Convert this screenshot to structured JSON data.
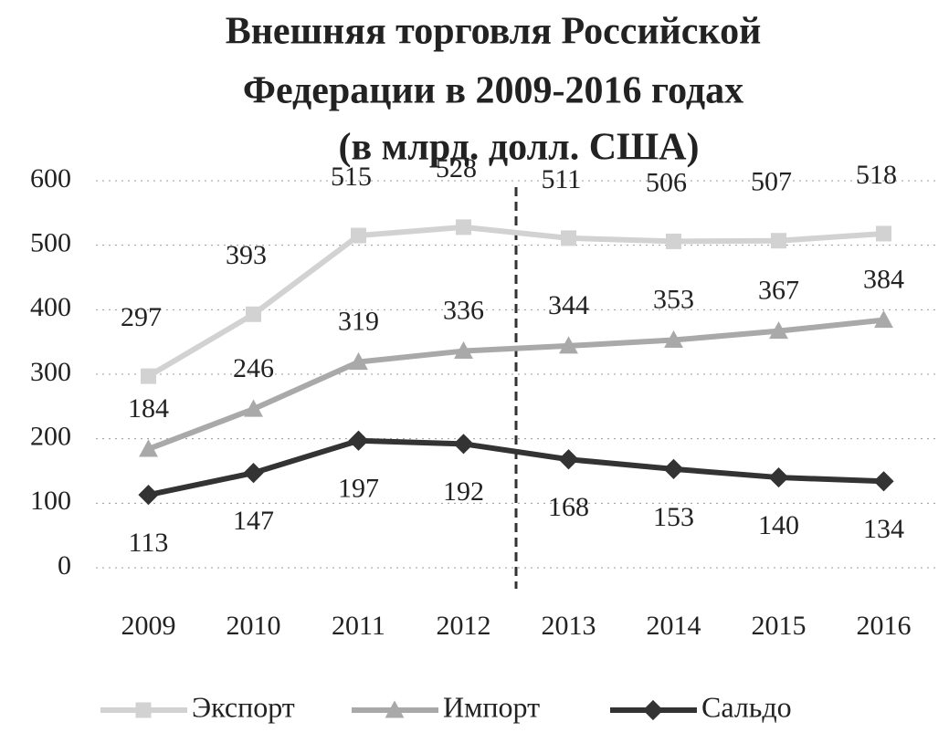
{
  "chart_data": {
    "type": "line",
    "title": [
      "Внешняя торговля Российской",
      "Федерации  в  2009-2016 годах",
      "(в  млрд. долл. США)"
    ],
    "categories": [
      "2009",
      "2010",
      "2011",
      "2012",
      "2013",
      "2014",
      "2015",
      "2016"
    ],
    "series": [
      {
        "name": "Экспорт",
        "color": "#d2d2d2",
        "marker": "square",
        "values": [
          297,
          393,
          515,
          528,
          511,
          506,
          507,
          518
        ]
      },
      {
        "name": "Импорт",
        "color": "#a9a9a9",
        "marker": "triangle",
        "values": [
          184,
          246,
          319,
          336,
          344,
          353,
          367,
          384
        ]
      },
      {
        "name": "Сальдо",
        "color": "#333333",
        "marker": "diamond",
        "values": [
          113,
          147,
          197,
          192,
          168,
          153,
          140,
          134
        ]
      }
    ],
    "ylim": [
      0,
      600
    ],
    "yticks": [
      0,
      100,
      200,
      300,
      400,
      500,
      600
    ],
    "grid": true,
    "legend": "bottom"
  }
}
